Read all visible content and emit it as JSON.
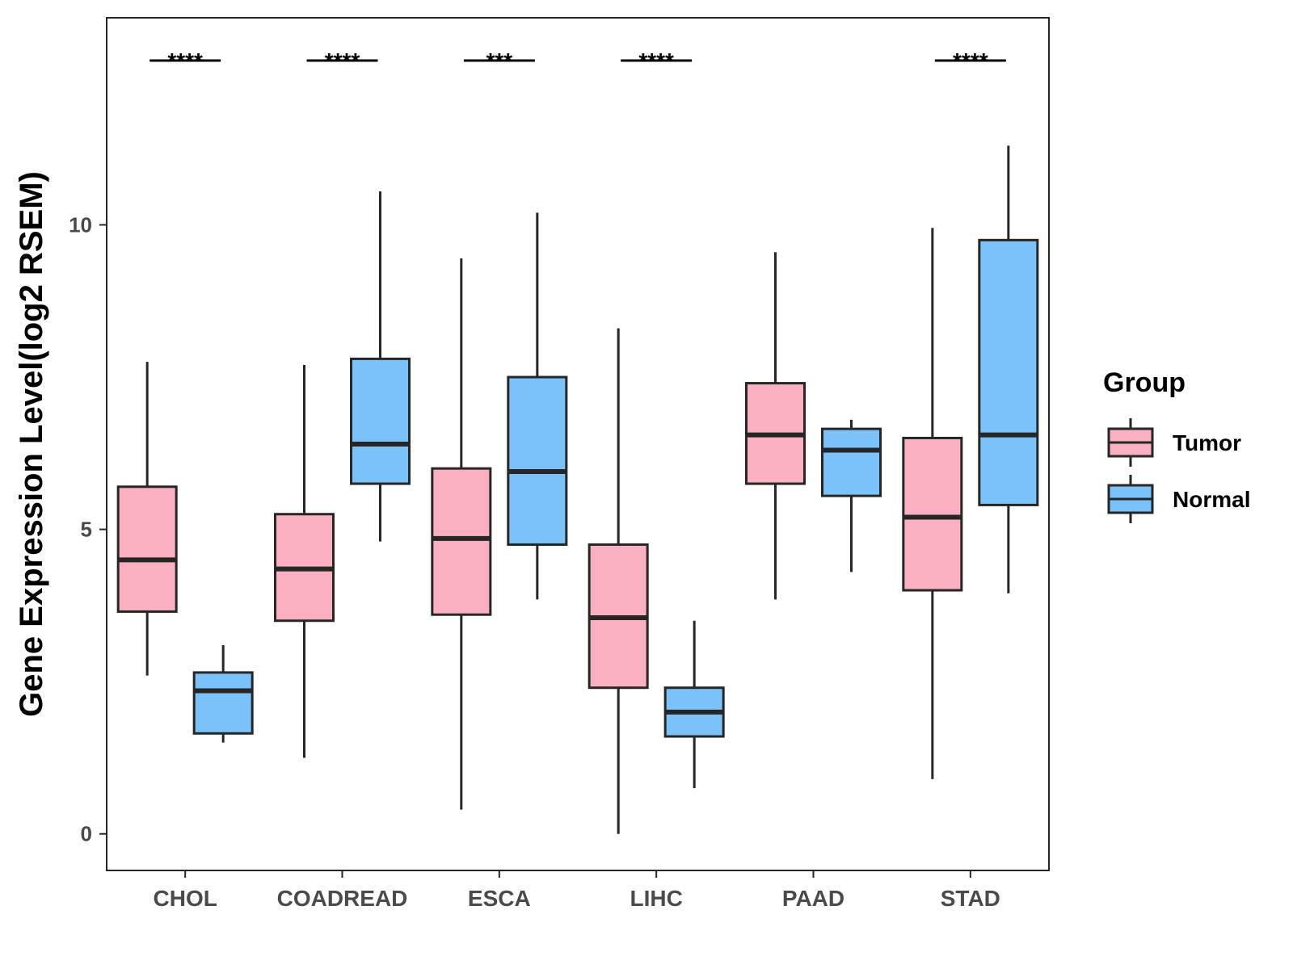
{
  "chart_data": {
    "type": "boxplot",
    "title": "",
    "xlabel": "",
    "ylabel": "Gene Expression Level(log2 RSEM)",
    "ylim": [
      -0.6,
      13.4
    ],
    "yticks": [
      0,
      5,
      10
    ],
    "grid": false,
    "categories": [
      "CHOL",
      "COADREAD",
      "ESCA",
      "LIHC",
      "PAAD",
      "STAD"
    ],
    "legend": {
      "title": "Group",
      "placement": "right",
      "entries": [
        "Tumor",
        "Normal"
      ]
    },
    "colors": {
      "Tumor": "#fbb0c2",
      "Normal": "#7ac2f9",
      "stroke": "#262626"
    },
    "series": [
      {
        "name": "Tumor",
        "boxes": [
          {
            "whisker_low": 2.6,
            "q1": 3.65,
            "median": 4.5,
            "q3": 5.7,
            "whisker_high": 7.75
          },
          {
            "whisker_low": 1.25,
            "q1": 3.5,
            "median": 4.35,
            "q3": 5.25,
            "whisker_high": 7.7
          },
          {
            "whisker_low": 0.4,
            "q1": 3.6,
            "median": 4.85,
            "q3": 6.0,
            "whisker_high": 9.45
          },
          {
            "whisker_low": 0.0,
            "q1": 2.4,
            "median": 3.55,
            "q3": 4.75,
            "whisker_high": 8.3
          },
          {
            "whisker_low": 3.85,
            "q1": 5.75,
            "median": 6.55,
            "q3": 7.4,
            "whisker_high": 9.55
          },
          {
            "whisker_low": 0.9,
            "q1": 4.0,
            "median": 5.2,
            "q3": 6.5,
            "whisker_high": 9.95
          }
        ]
      },
      {
        "name": "Normal",
        "boxes": [
          {
            "whisker_low": 1.5,
            "q1": 1.65,
            "median": 2.35,
            "q3": 2.65,
            "whisker_high": 3.1
          },
          {
            "whisker_low": 4.8,
            "q1": 5.75,
            "median": 6.4,
            "q3": 7.8,
            "whisker_high": 10.55
          },
          {
            "whisker_low": 3.85,
            "q1": 4.75,
            "median": 5.95,
            "q3": 7.5,
            "whisker_high": 10.2
          },
          {
            "whisker_low": 0.75,
            "q1": 1.6,
            "median": 2.0,
            "q3": 2.4,
            "whisker_high": 3.5
          },
          {
            "whisker_low": 4.3,
            "q1": 5.55,
            "median": 6.3,
            "q3": 6.65,
            "whisker_high": 6.8
          },
          {
            "whisker_low": 3.95,
            "q1": 5.4,
            "median": 6.55,
            "q3": 9.75,
            "whisker_high": 11.3
          }
        ]
      }
    ],
    "significance": [
      "****",
      "****",
      "***",
      "****",
      "",
      "****"
    ]
  }
}
